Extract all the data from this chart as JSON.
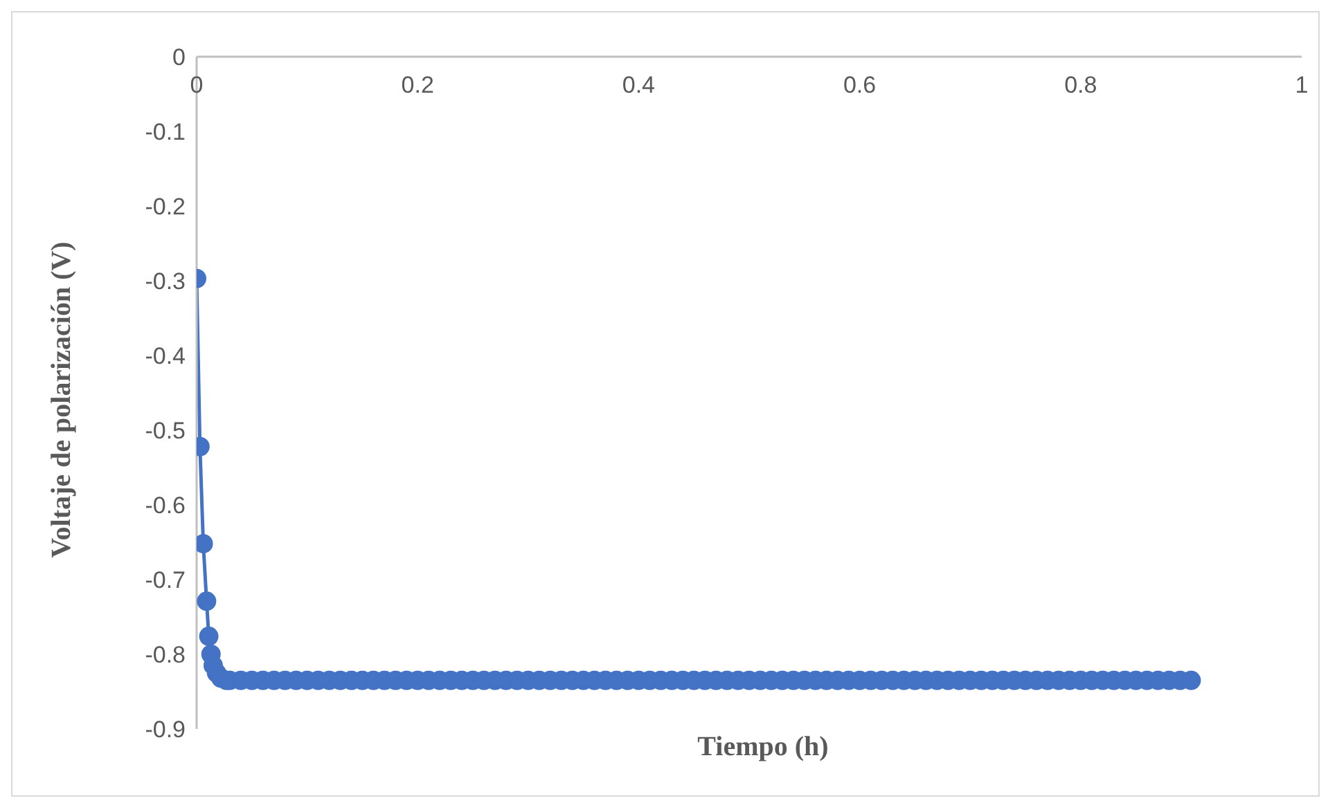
{
  "chart_data": {
    "type": "line",
    "xlabel": "Tiempo (h)",
    "ylabel": "Voltaje de polarización (V)",
    "xlim": [
      0,
      1
    ],
    "xticks": [
      0,
      0.2,
      0.4,
      0.6,
      0.8,
      1
    ],
    "ylim": [
      -0.9,
      0
    ],
    "yticks": [
      -0.9,
      -0.8,
      -0.7,
      -0.6,
      -0.5,
      -0.4,
      -0.3,
      -0.2,
      -0.1,
      0
    ],
    "grid": false,
    "legend": false,
    "marker": "circle",
    "line_style": "solid",
    "x": [
      0,
      0.003,
      0.006,
      0.009,
      0.011,
      0.013,
      0.015,
      0.018,
      0.022,
      0.027,
      0.03,
      0.04,
      0.05,
      0.06,
      0.07,
      0.08,
      0.09,
      0.1,
      0.11,
      0.12,
      0.13,
      0.14,
      0.15,
      0.16,
      0.17,
      0.18,
      0.19,
      0.2,
      0.21,
      0.22,
      0.23,
      0.24,
      0.25,
      0.26,
      0.27,
      0.28,
      0.29,
      0.3,
      0.31,
      0.32,
      0.33,
      0.34,
      0.35,
      0.36,
      0.37,
      0.38,
      0.39,
      0.4,
      0.41,
      0.42,
      0.43,
      0.44,
      0.45,
      0.46,
      0.47,
      0.48,
      0.49,
      0.5,
      0.51,
      0.52,
      0.53,
      0.54,
      0.55,
      0.56,
      0.57,
      0.58,
      0.59,
      0.6,
      0.61,
      0.62,
      0.63,
      0.64,
      0.65,
      0.66,
      0.67,
      0.68,
      0.69,
      0.7,
      0.71,
      0.72,
      0.73,
      0.74,
      0.75,
      0.76,
      0.77,
      0.78,
      0.79,
      0.8,
      0.81,
      0.82,
      0.83,
      0.84,
      0.85,
      0.86,
      0.87,
      0.88,
      0.89,
      0.9
    ],
    "series": [
      {
        "color": "#4472c4",
        "values": [
          -0.297,
          -0.522,
          -0.652,
          -0.729,
          -0.776,
          -0.8,
          -0.815,
          -0.825,
          -0.832,
          -0.835,
          -0.835,
          -0.835,
          -0.835,
          -0.835,
          -0.835,
          -0.835,
          -0.835,
          -0.835,
          -0.835,
          -0.835,
          -0.835,
          -0.835,
          -0.835,
          -0.835,
          -0.835,
          -0.835,
          -0.835,
          -0.835,
          -0.835,
          -0.835,
          -0.835,
          -0.835,
          -0.835,
          -0.835,
          -0.835,
          -0.835,
          -0.835,
          -0.835,
          -0.835,
          -0.835,
          -0.835,
          -0.835,
          -0.835,
          -0.835,
          -0.835,
          -0.835,
          -0.835,
          -0.835,
          -0.835,
          -0.835,
          -0.835,
          -0.835,
          -0.835,
          -0.835,
          -0.835,
          -0.835,
          -0.835,
          -0.835,
          -0.835,
          -0.835,
          -0.835,
          -0.835,
          -0.835,
          -0.835,
          -0.835,
          -0.835,
          -0.835,
          -0.835,
          -0.835,
          -0.835,
          -0.835,
          -0.835,
          -0.835,
          -0.835,
          -0.835,
          -0.835,
          -0.835,
          -0.835,
          -0.835,
          -0.835,
          -0.835,
          -0.835,
          -0.835,
          -0.835,
          -0.835,
          -0.835,
          -0.835,
          -0.835,
          -0.835,
          -0.835,
          -0.835,
          -0.835,
          -0.835,
          -0.835,
          -0.835,
          -0.835,
          -0.835,
          -0.835
        ]
      }
    ]
  }
}
